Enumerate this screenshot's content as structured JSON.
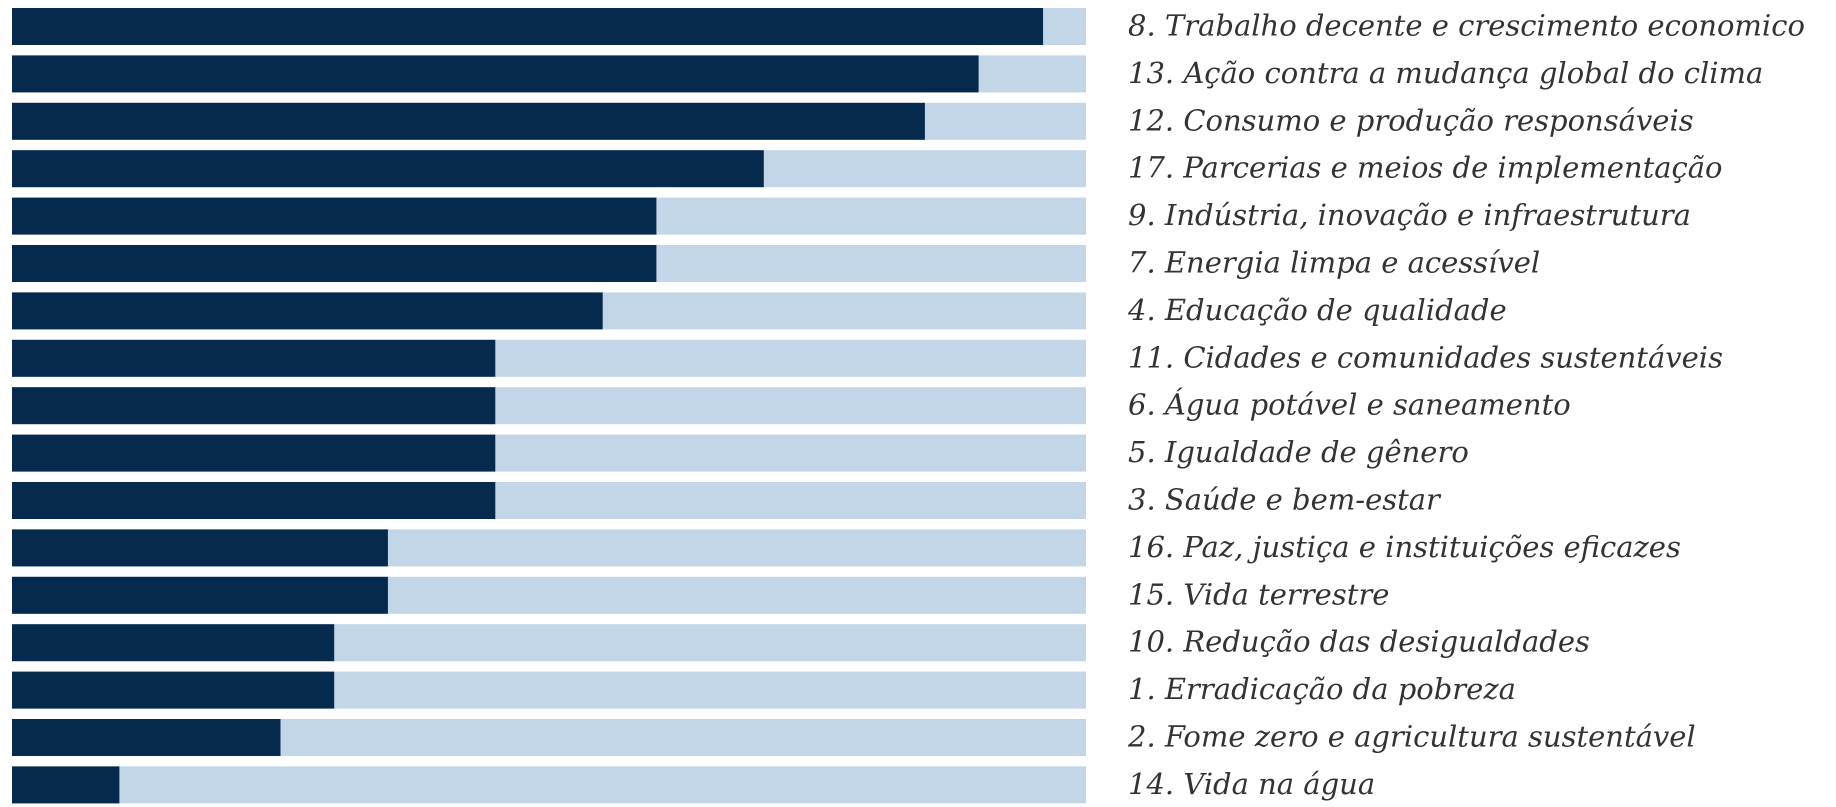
{
  "chart_data": {
    "type": "bar",
    "orientation": "horizontal",
    "categories": [
      "8. Trabalho decente e crescimento economico",
      "13. Ação contra a mudança global do clima",
      "12. Consumo e produção responsáveis",
      "17. Parcerias e meios de implementação",
      "9. Indústria, inovação e infraestrutura",
      "7. Energia limpa e acessível",
      "4. Educação de qualidade",
      "11. Cidades e comunidades sustentáveis",
      "6. Água potável e saneamento",
      "5. Igualdade de gênero",
      "3. Saúde e bem-estar",
      "16. Paz, justiça e instituições eficazes",
      "15. Vida terrestre",
      "10. Redução das desigualdades",
      "1. Erradicação da pobreza",
      "2. Fome zero e agricultura sustentável",
      "14. Vida na água"
    ],
    "values": [
      96,
      90,
      85,
      70,
      60,
      60,
      55,
      45,
      45,
      45,
      45,
      35,
      35,
      30,
      30,
      25,
      10
    ],
    "color": "#062a4d",
    "track_color": "#c2d6e8",
    "xlim": [
      0,
      100
    ]
  }
}
